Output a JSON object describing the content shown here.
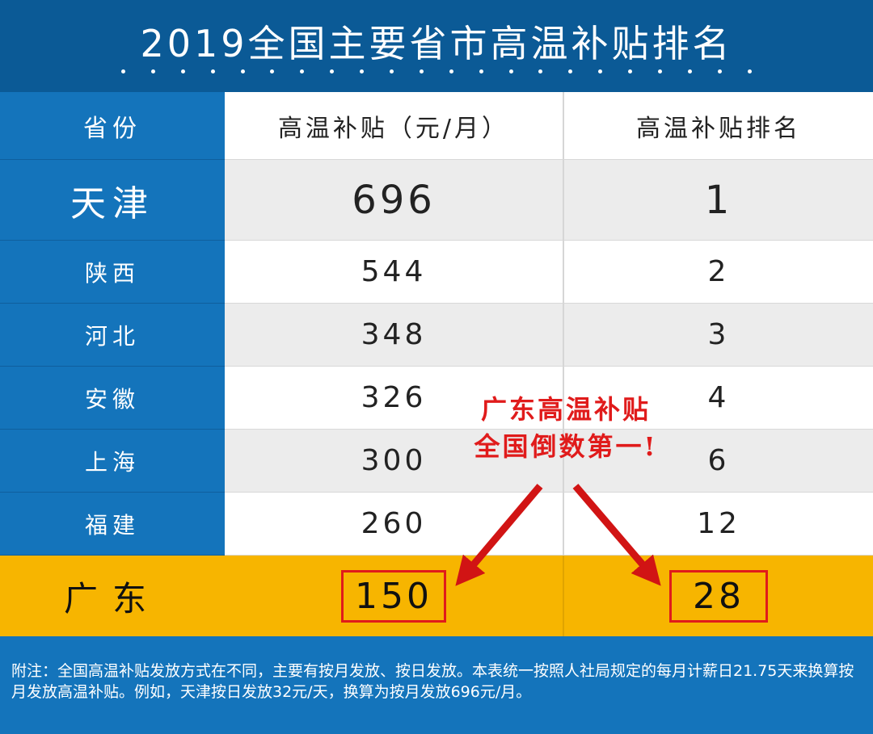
{
  "title": "2019全国主要省市高温补贴排名",
  "chart_data": {
    "type": "table",
    "columns": [
      "省份",
      "高温补贴（元/月）",
      "高温补贴排名"
    ],
    "rows": [
      {
        "province": "天津",
        "subsidy": "696",
        "rank": "1"
      },
      {
        "province": "陕西",
        "subsidy": "544",
        "rank": "2"
      },
      {
        "province": "河北",
        "subsidy": "348",
        "rank": "3"
      },
      {
        "province": "安徽",
        "subsidy": "326",
        "rank": "4"
      },
      {
        "province": "上海",
        "subsidy": "300",
        "rank": "6"
      },
      {
        "province": "福建",
        "subsidy": "260",
        "rank": "12"
      },
      {
        "province": "广东",
        "subsidy": "150",
        "rank": "28"
      }
    ],
    "highlight_row": "广东"
  },
  "callout": {
    "line1": "广东高温补贴",
    "line2": "全国倒数第一!"
  },
  "note": "附注：全国高温补贴发放方式在不同，主要有按月发放、按日发放。本表统一按照人社局规定的每月计薪日21.75天来换算按月发放高温补贴。例如，天津按日发放32元/天，换算为按月发放696元/月。",
  "colors": {
    "title_bg": "#0b5a96",
    "province_col": "#1474bb",
    "highlight": "#f7b500",
    "callout": "#e01b1b"
  }
}
